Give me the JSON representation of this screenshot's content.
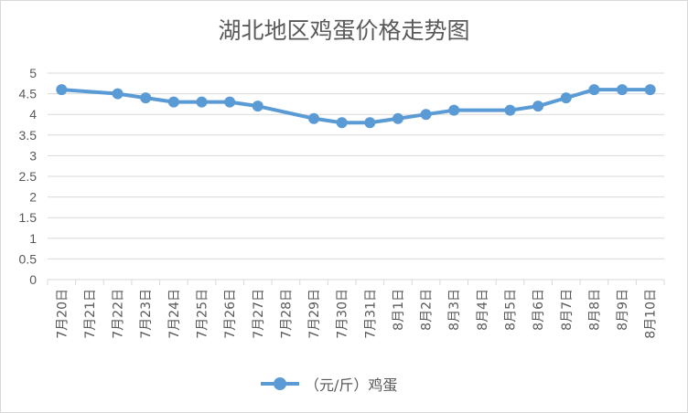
{
  "chart_data": {
    "type": "line",
    "title": "湖北地区鸡蛋价格走势图",
    "categories": [
      "7月20日",
      "7月21日",
      "7月22日",
      "7月23日",
      "7月24日",
      "7月25日",
      "7月26日",
      "7月27日",
      "7月28日",
      "7月29日",
      "7月30日",
      "7月31日",
      "8月1日",
      "8月2日",
      "8月3日",
      "8月4日",
      "8月5日",
      "8月6日",
      "8月7日",
      "8月8日",
      "8月9日",
      "8月10日"
    ],
    "series": [
      {
        "name": "（元/斤）鸡蛋",
        "color": "#5b9bd5",
        "values": [
          4.6,
          null,
          4.5,
          4.4,
          4.3,
          4.3,
          4.3,
          4.2,
          null,
          3.9,
          3.8,
          3.8,
          3.9,
          4.0,
          4.1,
          null,
          4.1,
          4.2,
          4.4,
          4.6,
          4.6,
          4.6
        ]
      }
    ],
    "ylim": [
      0,
      5
    ],
    "yticks": [
      "0",
      "0.5",
      "1",
      "1.5",
      "2",
      "2.5",
      "3",
      "3.5",
      "4",
      "4.5",
      "5"
    ],
    "grid": true,
    "legend": "bottom",
    "xlabel": "",
    "ylabel": ""
  }
}
